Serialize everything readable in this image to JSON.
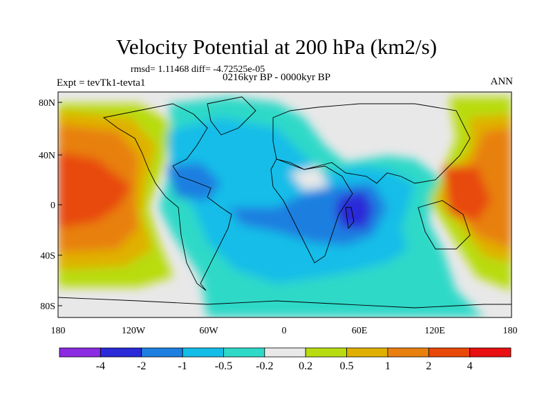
{
  "title": "Velocity Potential at 200 hPa (km2/s)",
  "stats": "rmsd= 1.11468 diff= -4.72525e-05",
  "period": "0216kyr BP - 0000kyr BP",
  "experiment": "Expt = tevTk1-tevta1",
  "season": "ANN",
  "lat_ticks": [
    "80N",
    "40N",
    "0",
    "40S",
    "80S"
  ],
  "lon_ticks": [
    "180",
    "120W",
    "60W",
    "0",
    "60E",
    "120E",
    "180"
  ],
  "colorbar": {
    "labels": [
      "-4",
      "-2",
      "-1",
      "-0.5",
      "-0.2",
      "0.2",
      "0.5",
      "1",
      "2",
      "4"
    ],
    "colors": [
      "#8a2be2",
      "#2a2ad8",
      "#1e7fe0",
      "#14bde8",
      "#2fd9c8",
      "#e8e8e8",
      "#b8dc10",
      "#e0b000",
      "#e88010",
      "#e84808",
      "#e81010"
    ]
  }
}
